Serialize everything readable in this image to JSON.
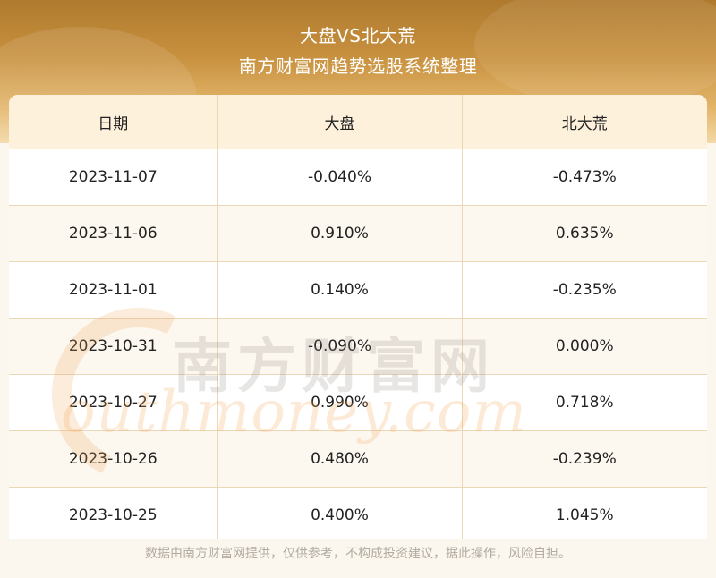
{
  "header": {
    "title": "大盘VS北大荒",
    "subtitle": "南方财富网趋势选股系统整理"
  },
  "table": {
    "columns": [
      "日期",
      "大盘",
      "北大荒"
    ],
    "rows": [
      [
        "2023-11-07",
        "-0.040%",
        "-0.473%"
      ],
      [
        "2023-11-06",
        "0.910%",
        "0.635%"
      ],
      [
        "2023-11-01",
        "0.140%",
        "-0.235%"
      ],
      [
        "2023-10-31",
        "-0.090%",
        "0.000%"
      ],
      [
        "2023-10-27",
        "0.990%",
        "0.718%"
      ],
      [
        "2023-10-26",
        "0.480%",
        "-0.239%"
      ],
      [
        "2023-10-25",
        "0.400%",
        "1.045%"
      ]
    ]
  },
  "watermark": {
    "logo_text": "南方财富网",
    "domain_text": "outhmoney.com"
  },
  "footer": {
    "disclaimer": "数据由南方财富网提供，仅供参考，不构成投资建议，据此操作，风险自担。"
  },
  "colors": {
    "banner": "#c8913f",
    "header_row": "#fdf1dc",
    "border": "#ead7b6"
  }
}
